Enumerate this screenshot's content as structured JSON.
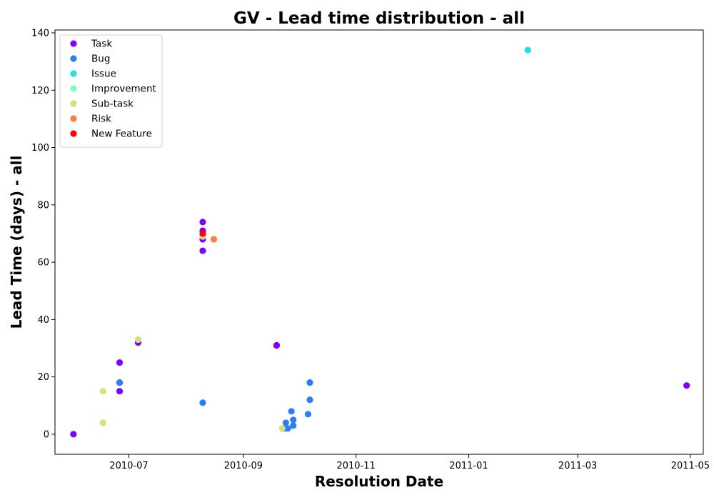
{
  "chart_data": {
    "type": "scatter",
    "title": "GV - Lead time distribution - all",
    "xlabel": "Resolution Date",
    "ylabel": "Lead Time (days) - all",
    "xlim": [
      "2010-05-22",
      "2011-05-08"
    ],
    "ylim": [
      -7,
      141
    ],
    "x_ticks": [
      "2010-07",
      "2010-09",
      "2010-11",
      "2011-01",
      "2011-03",
      "2011-05"
    ],
    "y_ticks": [
      0,
      20,
      40,
      60,
      80,
      100,
      120,
      140
    ],
    "grid": false,
    "legend_position": "top-left",
    "series": [
      {
        "name": "Task",
        "color": "#8000ff",
        "points": [
          {
            "x": "2010-06-01",
            "y": 0
          },
          {
            "x": "2010-06-26",
            "y": 25
          },
          {
            "x": "2010-06-26",
            "y": 18
          },
          {
            "x": "2010-06-26",
            "y": 15
          },
          {
            "x": "2010-07-06",
            "y": 32
          },
          {
            "x": "2010-08-10",
            "y": 74
          },
          {
            "x": "2010-08-10",
            "y": 71
          },
          {
            "x": "2010-08-10",
            "y": 69
          },
          {
            "x": "2010-08-10",
            "y": 68
          },
          {
            "x": "2010-08-10",
            "y": 64
          },
          {
            "x": "2010-09-19",
            "y": 31
          },
          {
            "x": "2010-09-19",
            "y": 31
          },
          {
            "x": "2011-04-29",
            "y": 17
          }
        ]
      },
      {
        "name": "Bug",
        "color": "#2c7ef7",
        "points": [
          {
            "x": "2010-06-26",
            "y": 18
          },
          {
            "x": "2010-08-10",
            "y": 11
          },
          {
            "x": "2010-09-23",
            "y": 2
          },
          {
            "x": "2010-09-24",
            "y": 4
          },
          {
            "x": "2010-09-25",
            "y": 2
          },
          {
            "x": "2010-09-27",
            "y": 8
          },
          {
            "x": "2010-09-28",
            "y": 5
          },
          {
            "x": "2010-09-28",
            "y": 3
          },
          {
            "x": "2010-10-06",
            "y": 7
          },
          {
            "x": "2010-10-07",
            "y": 18
          },
          {
            "x": "2010-10-07",
            "y": 12
          }
        ]
      },
      {
        "name": "Issue",
        "color": "#2adddd",
        "points": [
          {
            "x": "2011-02-02",
            "y": 134
          }
        ]
      },
      {
        "name": "Improvement",
        "color": "#80ffb4",
        "points": []
      },
      {
        "name": "Sub-task",
        "color": "#d4dd80",
        "points": [
          {
            "x": "2010-06-17",
            "y": 15
          },
          {
            "x": "2010-06-17",
            "y": 4
          },
          {
            "x": "2010-07-06",
            "y": 33
          },
          {
            "x": "2010-08-10",
            "y": 69
          },
          {
            "x": "2010-09-22",
            "y": 2
          }
        ]
      },
      {
        "name": "Risk",
        "color": "#ff7e41",
        "points": [
          {
            "x": "2010-08-16",
            "y": 68
          }
        ]
      },
      {
        "name": "New Feature",
        "color": "#ff0000",
        "points": [
          {
            "x": "2010-08-10",
            "y": 70
          }
        ]
      }
    ]
  }
}
